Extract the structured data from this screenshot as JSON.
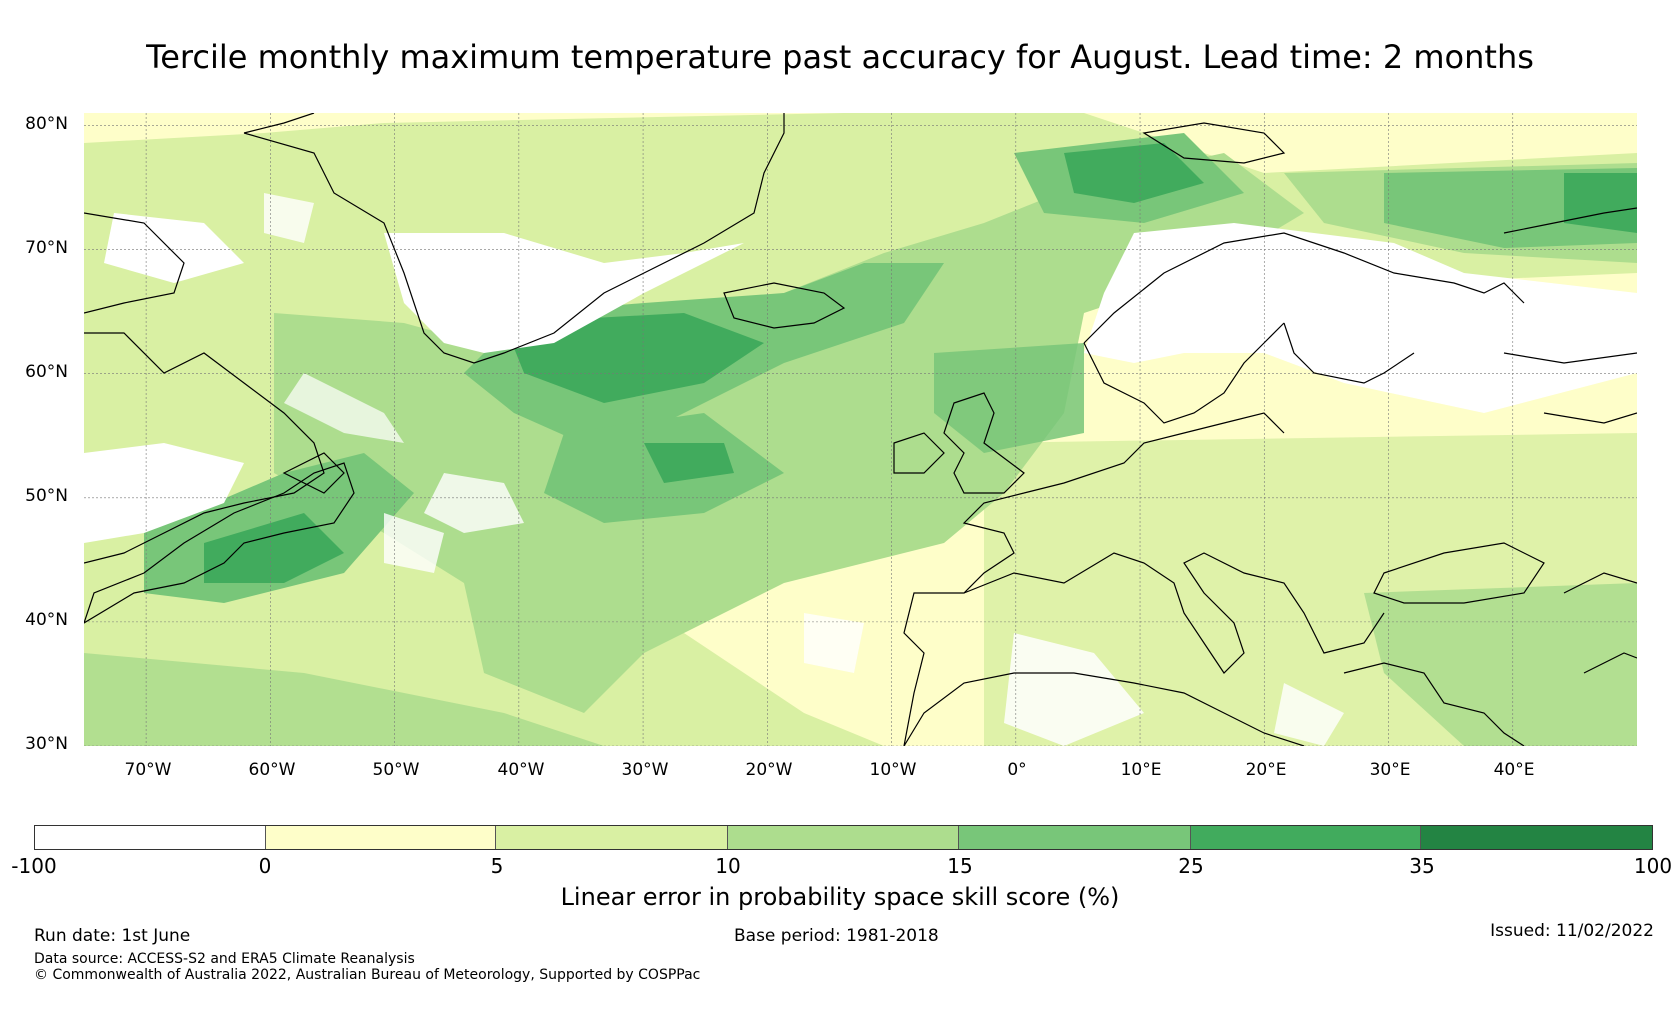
{
  "title": "Tercile monthly maximum temperature past accuracy for August. Lead time: 2 months",
  "map": {
    "lat_labels": [
      "80°N",
      "70°N",
      "60°N",
      "50°N",
      "40°N",
      "30°N"
    ],
    "lon_labels": [
      "70°W",
      "60°W",
      "50°W",
      "40°W",
      "30°W",
      "20°W",
      "10°W",
      "0°",
      "10°E",
      "20°E",
      "30°E",
      "40°E"
    ],
    "extent": {
      "lon_min": -75,
      "lon_max": 50,
      "lat_min": 30,
      "lat_max": 81
    }
  },
  "colorbar": {
    "title": "Linear error in probability space skill score (%)",
    "ticks": [
      "-100",
      "0",
      "5",
      "10",
      "15",
      "25",
      "35",
      "100"
    ],
    "colors": [
      "#ffffff",
      "#fefec9",
      "#d9f0a3",
      "#addd8e",
      "#78c679",
      "#41ab5d",
      "#238443"
    ]
  },
  "footer": {
    "run_date": "Run date: 1st June",
    "base_period": "Base period: 1981-2018",
    "issued": "Issued: 11/02/2022",
    "data_source": "Data source: ACCESS-S2 and ERA5 Climate Reanalysis",
    "copyright": "© Commonwealth of Australia 2022, Australian Bureau of Meteorology, Supported by COSPPac"
  }
}
